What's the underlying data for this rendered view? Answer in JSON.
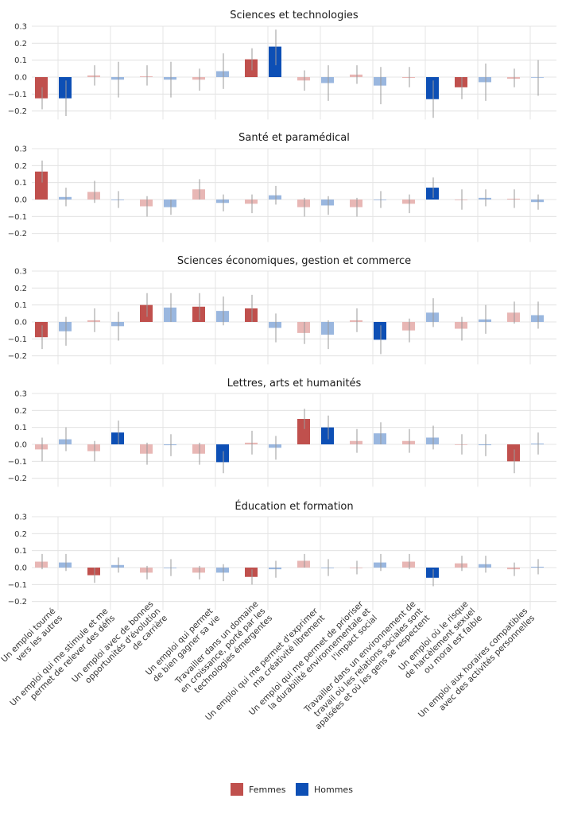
{
  "chart_data": {
    "type": "bar",
    "orientation": "vertical",
    "layout": "faceted",
    "y_ticks": [
      0.3,
      0.2,
      0.1,
      0.0,
      -0.1,
      -0.2
    ],
    "y_tick_labels": [
      "0.3",
      "0.2",
      "0.1",
      "0.0",
      "−0.1",
      "−0.2"
    ],
    "ylim": [
      -0.25,
      0.3
    ],
    "grid": true,
    "legend_position": "bottom",
    "colors": {
      "Femmes": "#c0504d",
      "Hommes": "#0d4fb5",
      "Femmes_faded": "#e8b7b5",
      "Hommes_faded": "#9ab7df"
    },
    "categories": [
      [
        "Un emploi tourné",
        "vers les autres"
      ],
      [
        "Un emploi qui me stimule et me",
        "permet de relever des défis"
      ],
      [
        "Un emploi avec de bonnes",
        "opportunités d'évolution",
        "de carrière"
      ],
      [
        "Un emploi qui permet",
        "de bien gagner sa vie"
      ],
      [
        "Travailler dans un domaine",
        "en croissance, porté par les",
        "technologies émergentes"
      ],
      [
        "Un emploi qui me permet d'exprimer",
        "ma créativité librement"
      ],
      [
        "Un emploi qui me permet de prioriser",
        "la durabilité environnementale et",
        "l'impact social"
      ],
      [
        "Travailler dans un environnement de",
        "travail où les relations sociales sont",
        "apaisées et où les gens se respectent"
      ],
      [
        "Un emploi où le risque",
        "de harcèlement sexuel",
        "ou moral est faible"
      ],
      [
        "Un emploi aux horaires compatibles",
        "avec des activités personnelles"
      ]
    ],
    "legend": [
      {
        "name": "Femmes",
        "color": "#c0504d"
      },
      {
        "name": "Hommes",
        "color": "#0d4fb5"
      }
    ],
    "panels": [
      {
        "title": "Sciences et technologies",
        "series": [
          {
            "name": "Femmes",
            "values": [
              -0.125,
              0.01,
              0.005,
              -0.015,
              0.105,
              -0.02,
              0.015,
              -0.005,
              -0.06,
              -0.01
            ],
            "lower": [
              -0.19,
              -0.05,
              -0.05,
              -0.08,
              0.04,
              -0.08,
              -0.04,
              -0.06,
              -0.13,
              -0.06
            ],
            "upper": [
              -0.06,
              0.07,
              0.07,
              0.05,
              0.17,
              0.04,
              0.07,
              0.06,
              0.0,
              0.05
            ],
            "significant": [
              true,
              false,
              false,
              false,
              true,
              false,
              false,
              false,
              true,
              false
            ]
          },
          {
            "name": "Hommes",
            "values": [
              -0.125,
              -0.015,
              -0.015,
              0.035,
              0.18,
              -0.035,
              -0.05,
              -0.13,
              -0.03,
              0.0
            ],
            "lower": [
              -0.23,
              -0.12,
              -0.12,
              -0.07,
              0.07,
              -0.14,
              -0.16,
              -0.24,
              -0.14,
              -0.11
            ],
            "upper": [
              -0.02,
              0.09,
              0.09,
              0.14,
              0.28,
              0.07,
              0.06,
              -0.02,
              0.08,
              0.1
            ],
            "significant": [
              true,
              false,
              false,
              false,
              true,
              false,
              false,
              true,
              false,
              false
            ]
          }
        ]
      },
      {
        "title": "Santé et paramédical",
        "series": [
          {
            "name": "Femmes",
            "values": [
              0.165,
              0.045,
              -0.04,
              0.06,
              -0.025,
              -0.045,
              -0.045,
              -0.025,
              0.0,
              0.005
            ],
            "lower": [
              0.1,
              -0.02,
              -0.1,
              0.0,
              -0.08,
              -0.1,
              -0.1,
              -0.08,
              -0.06,
              -0.05
            ],
            "upper": [
              0.23,
              0.11,
              0.02,
              0.12,
              0.03,
              0.01,
              0.01,
              0.03,
              0.06,
              0.06
            ],
            "significant": [
              true,
              false,
              false,
              false,
              false,
              false,
              false,
              false,
              false,
              false
            ]
          },
          {
            "name": "Hommes",
            "values": [
              0.015,
              0.0,
              -0.045,
              -0.02,
              0.025,
              -0.035,
              0.0,
              0.07,
              0.01,
              -0.015
            ],
            "lower": [
              -0.04,
              -0.05,
              -0.09,
              -0.07,
              -0.03,
              -0.09,
              -0.05,
              0.01,
              -0.04,
              -0.06
            ],
            "upper": [
              0.07,
              0.05,
              0.0,
              0.03,
              0.08,
              0.02,
              0.05,
              0.13,
              0.06,
              0.03
            ],
            "significant": [
              false,
              false,
              false,
              false,
              false,
              false,
              false,
              true,
              false,
              false
            ]
          }
        ]
      },
      {
        "title": "Sciences économiques, gestion et commerce",
        "series": [
          {
            "name": "Femmes",
            "values": [
              -0.09,
              0.01,
              0.1,
              0.09,
              0.08,
              -0.065,
              0.01,
              -0.05,
              -0.04,
              0.055
            ],
            "lower": [
              -0.16,
              -0.06,
              0.03,
              0.01,
              0.0,
              -0.13,
              -0.06,
              -0.12,
              -0.11,
              -0.01
            ],
            "upper": [
              -0.02,
              0.08,
              0.17,
              0.17,
              0.16,
              0.0,
              0.08,
              0.02,
              0.03,
              0.12
            ],
            "significant": [
              true,
              false,
              true,
              true,
              true,
              false,
              false,
              false,
              false,
              false
            ]
          },
          {
            "name": "Hommes",
            "values": [
              -0.055,
              -0.025,
              0.085,
              0.065,
              -0.035,
              -0.075,
              -0.105,
              0.055,
              0.015,
              0.04
            ],
            "lower": [
              -0.14,
              -0.11,
              0.0,
              -0.02,
              -0.12,
              -0.16,
              -0.19,
              -0.03,
              -0.07,
              -0.04
            ],
            "upper": [
              0.03,
              0.06,
              0.17,
              0.15,
              0.05,
              0.01,
              -0.02,
              0.14,
              0.1,
              0.12
            ],
            "significant": [
              false,
              false,
              false,
              false,
              false,
              false,
              true,
              false,
              false,
              false
            ]
          }
        ]
      },
      {
        "title": "Lettres, arts et humanités",
        "series": [
          {
            "name": "Femmes",
            "values": [
              -0.03,
              -0.04,
              -0.055,
              -0.055,
              0.01,
              0.15,
              0.02,
              0.02,
              0.0,
              -0.1
            ],
            "lower": [
              -0.1,
              -0.1,
              -0.12,
              -0.12,
              -0.06,
              0.09,
              -0.05,
              -0.05,
              -0.06,
              -0.17
            ],
            "upper": [
              0.04,
              0.02,
              0.01,
              0.01,
              0.08,
              0.21,
              0.09,
              0.09,
              0.06,
              -0.03
            ],
            "significant": [
              false,
              false,
              false,
              false,
              false,
              true,
              false,
              false,
              false,
              true
            ]
          },
          {
            "name": "Hommes",
            "values": [
              0.03,
              0.07,
              -0.005,
              -0.105,
              -0.02,
              0.1,
              0.065,
              0.04,
              -0.005,
              0.005
            ],
            "lower": [
              -0.04,
              0.0,
              -0.07,
              -0.17,
              -0.09,
              0.03,
              0.0,
              -0.03,
              -0.07,
              -0.06
            ],
            "upper": [
              0.1,
              0.14,
              0.06,
              -0.04,
              0.05,
              0.17,
              0.13,
              0.11,
              0.06,
              0.07
            ],
            "significant": [
              false,
              true,
              false,
              true,
              false,
              true,
              false,
              false,
              false,
              false
            ]
          }
        ]
      },
      {
        "title": "Éducation et formation",
        "series": [
          {
            "name": "Femmes",
            "values": [
              0.035,
              -0.045,
              -0.03,
              -0.03,
              -0.055,
              0.04,
              0.0,
              0.035,
              0.025,
              -0.01
            ],
            "lower": [
              -0.01,
              -0.09,
              -0.07,
              -0.07,
              -0.1,
              0.0,
              -0.04,
              -0.01,
              -0.02,
              -0.05
            ],
            "upper": [
              0.08,
              0.0,
              0.01,
              0.01,
              -0.01,
              0.08,
              0.04,
              0.08,
              0.07,
              0.03
            ],
            "significant": [
              false,
              true,
              false,
              false,
              true,
              false,
              false,
              false,
              false,
              false
            ]
          },
          {
            "name": "Hommes",
            "values": [
              0.03,
              0.015,
              0.0,
              -0.03,
              -0.01,
              0.0,
              0.03,
              -0.06,
              0.02,
              0.005
            ],
            "lower": [
              -0.02,
              -0.03,
              -0.05,
              -0.08,
              -0.06,
              -0.05,
              -0.02,
              -0.11,
              -0.03,
              -0.04
            ],
            "upper": [
              0.08,
              0.06,
              0.05,
              0.02,
              0.04,
              0.05,
              0.08,
              -0.01,
              0.07,
              0.05
            ],
            "significant": [
              false,
              false,
              false,
              false,
              false,
              false,
              false,
              true,
              false,
              false
            ]
          }
        ]
      }
    ]
  }
}
